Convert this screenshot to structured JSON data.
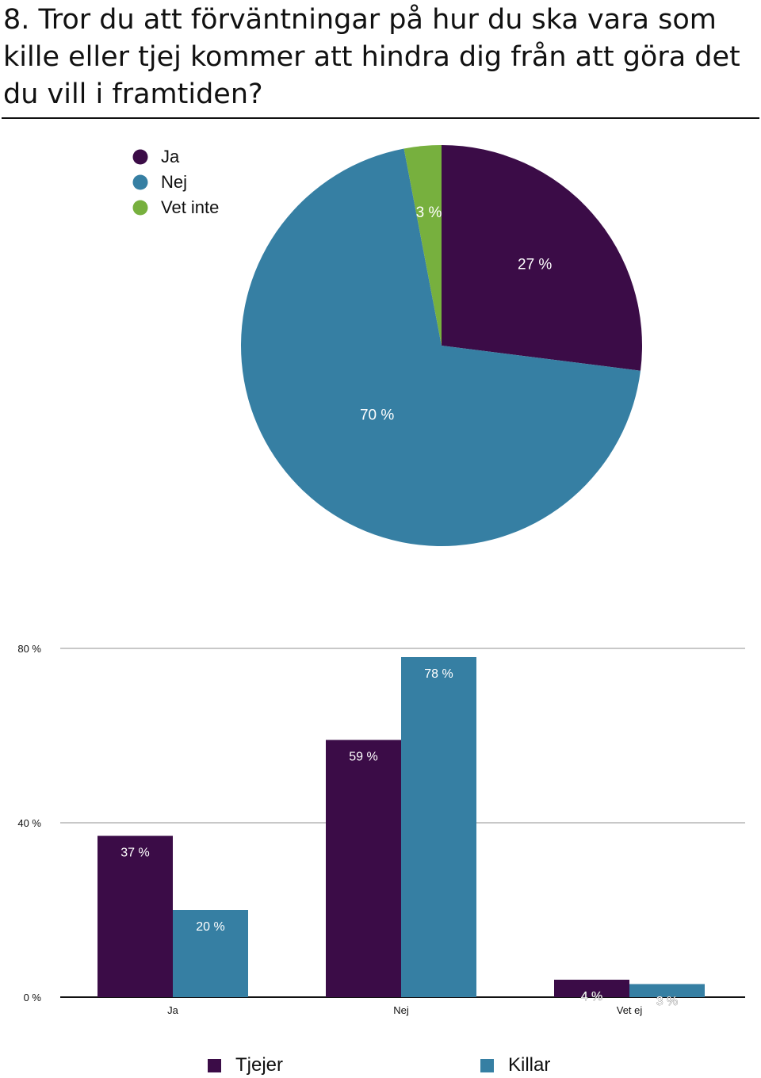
{
  "question": "8. Tror du att förväntningar på hur du ska vara som kil­le eller tjej kommer att hindra dig från att göra det du vill i framtiden?",
  "colors": {
    "ja": "#3b0c47",
    "nej": "#367fa3",
    "vet_inte": "#77b03e",
    "grid": "#c8c8c8",
    "axis": "#111111"
  },
  "chart_data": [
    {
      "type": "pie",
      "title": "",
      "legend_position": "top-left",
      "slices": [
        {
          "label": "Ja",
          "value": 27,
          "display": "27 %",
          "color": "#3b0c47"
        },
        {
          "label": "Nej",
          "value": 70,
          "display": "70 %",
          "color": "#367fa3"
        },
        {
          "label": "Vet inte",
          "value": 3,
          "display": "3 %",
          "color": "#77b03e"
        }
      ]
    },
    {
      "type": "bar",
      "title": "",
      "categories": [
        "Ja",
        "Nej",
        "Vet ej"
      ],
      "series": [
        {
          "name": "Tjejer",
          "values": [
            37,
            59,
            4
          ],
          "labels": [
            "37 %",
            "59 %",
            "4 %"
          ],
          "color": "#3b0c47"
        },
        {
          "name": "Killar",
          "values": [
            20,
            78,
            3
          ],
          "labels": [
            "20 %",
            "78 %",
            "3 %"
          ],
          "color": "#367fa3"
        }
      ],
      "ylim": [
        0,
        80
      ],
      "yticks": [
        0,
        40,
        80
      ],
      "ytick_labels": [
        "0 %",
        "40 %",
        "80 %"
      ],
      "grid": true,
      "legend_position": "bottom"
    }
  ]
}
